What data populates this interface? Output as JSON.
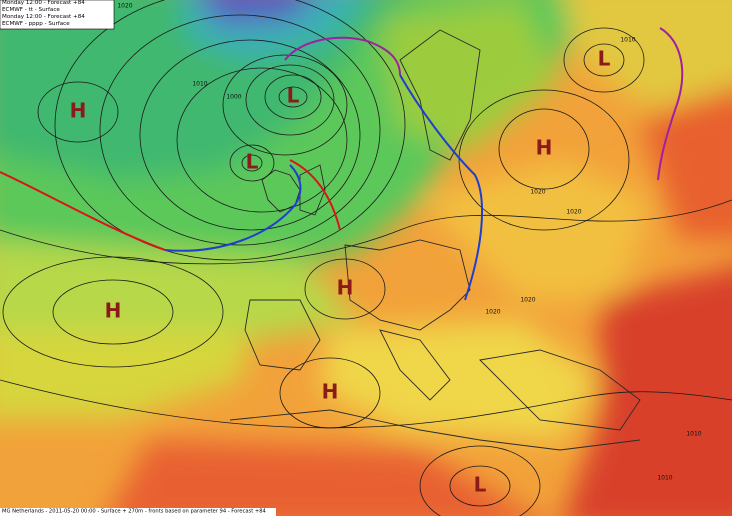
{
  "header": {
    "lines": [
      "Monday 12:00 - Forecast +84",
      "ECMWF - tt - Surface",
      "Monday 12:00 - Forecast +84",
      "ECMWF - pppp - Surface"
    ]
  },
  "pressure_centers": [
    {
      "label": "H"
    },
    {
      "label": "L"
    },
    {
      "label": "L"
    },
    {
      "label": "H"
    },
    {
      "label": "L"
    },
    {
      "label": "H"
    },
    {
      "label": "H"
    },
    {
      "label": "H"
    },
    {
      "label": "L"
    }
  ],
  "isobar_labels": [
    "1020",
    "1010",
    "1000",
    "1010",
    "1020",
    "1020",
    "1020",
    "1020",
    "1010",
    "1010"
  ],
  "footer": "MG Netherlands - 2011-05-20 00:00 - Surface + 270m - fronts based on parameter 94 - Forecast +84"
}
